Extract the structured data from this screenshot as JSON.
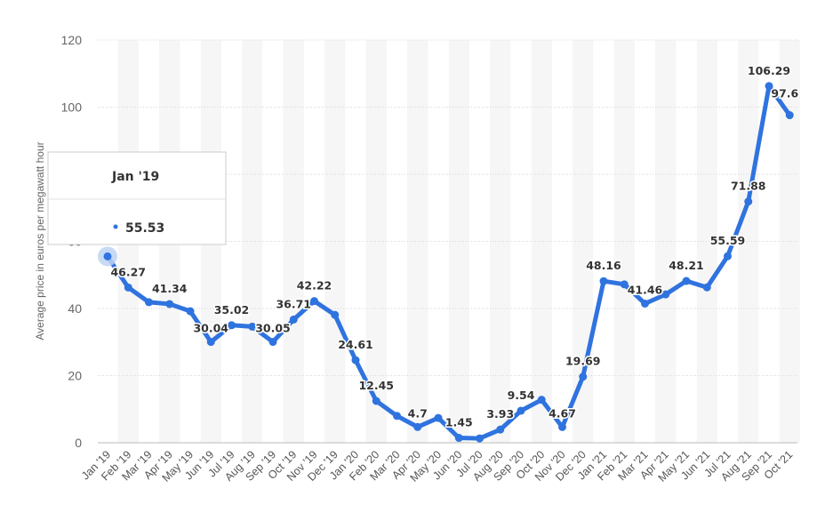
{
  "chart_data": {
    "type": "line",
    "ylabel": "Average price in euros per megawatt hour",
    "ylim": [
      0,
      120
    ],
    "yticks": [
      0,
      20,
      40,
      60,
      80,
      100,
      120
    ],
    "grid": true,
    "color": "#2f73df",
    "categories": [
      "Jan '19",
      "Feb '19",
      "Mar '19",
      "Apr '19",
      "May '19",
      "Jun '19",
      "Jul '19",
      "Aug '19",
      "Sep '19",
      "Oct '19",
      "Nov '19",
      "Dec '19",
      "Jan '20",
      "Feb '20",
      "Mar '20",
      "Apr '20",
      "May '20",
      "Jun '20",
      "Jul '20",
      "Aug '20",
      "Sep '20",
      "Oct '20",
      "Nov '20",
      "Dec '20",
      "Jan '21",
      "Feb '21",
      "Mar '21",
      "Apr '21",
      "May '21",
      "Jun '21",
      "Jul '21",
      "Aug '21",
      "Sep '21",
      "Oct '21"
    ],
    "values": [
      55.53,
      46.27,
      41.88,
      41.34,
      39.2,
      30.04,
      35.02,
      34.6,
      30.05,
      36.71,
      42.22,
      38.1,
      24.61,
      12.45,
      8.0,
      4.7,
      7.4,
      1.45,
      1.3,
      3.93,
      9.54,
      12.8,
      4.67,
      19.69,
      48.16,
      47.2,
      41.46,
      44.2,
      48.21,
      46.3,
      55.59,
      71.88,
      106.29,
      97.6
    ],
    "data_labels": [
      "",
      "46.27",
      "",
      "41.34",
      "",
      "30.04",
      "35.02",
      "",
      "30.05",
      "36.71",
      "42.22",
      "",
      "24.61",
      "12.45",
      "",
      "4.7",
      "",
      "1.45",
      "",
      "3.93",
      "9.54",
      "",
      "4.67",
      "19.69",
      "48.16",
      "",
      "41.46",
      "",
      "48.21",
      "",
      "55.59",
      "71.88",
      "106.29",
      "97.6"
    ],
    "tooltip": {
      "category": "Jan '19",
      "value": "55.53",
      "index": 0
    }
  }
}
